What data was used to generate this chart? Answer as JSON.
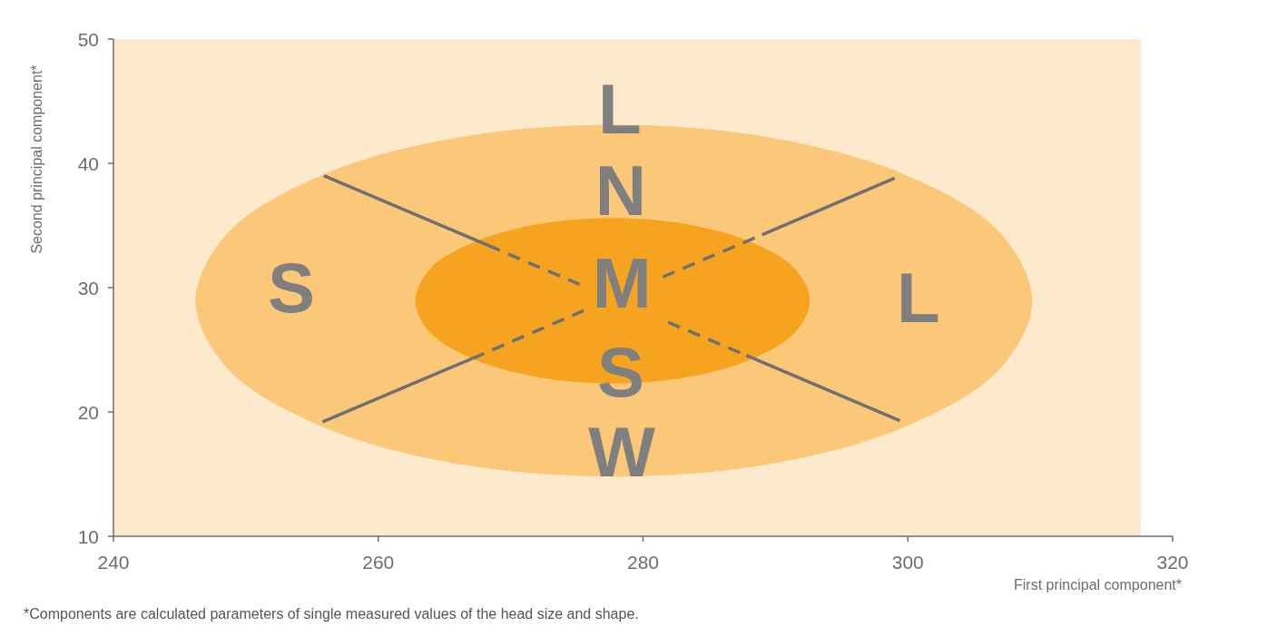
{
  "chart_data": {
    "type": "area",
    "xlabel": "First principal component*",
    "ylabel": "Second principal component*",
    "xlim": [
      240,
      320
    ],
    "ylim": [
      10,
      50
    ],
    "xticks": [
      240,
      260,
      280,
      300,
      320
    ],
    "yticks": [
      10,
      20,
      30,
      40,
      50
    ],
    "grid": false,
    "bands": [
      {
        "axis": "x",
        "from": 240,
        "to": 317.6,
        "color": "#fde9cb"
      }
    ],
    "series": [
      {
        "color": "#fbc87a",
        "x": [
          309.4,
          307.0,
          300.1,
          289.9,
          277.8,
          265.7,
          255.5,
          248.6,
          246.2,
          248.6,
          255.5,
          265.7,
          277.8,
          289.9,
          300.1,
          307.0
        ],
        "values": [
          28.95,
          34.37,
          38.95,
          42.02,
          43.1,
          42.02,
          38.95,
          34.37,
          28.95,
          23.53,
          18.95,
          15.88,
          14.8,
          15.88,
          18.95,
          23.53
        ]
      },
      {
        "color": "#f6a41f",
        "x": [
          292.6,
          291.5,
          288.2,
          283.4,
          277.7,
          272.0,
          267.2,
          263.9,
          262.8,
          263.9,
          267.2,
          272.0,
          277.7,
          283.4,
          288.2,
          291.5
        ],
        "values": [
          28.95,
          31.5,
          33.65,
          35.09,
          35.6,
          35.09,
          33.65,
          31.5,
          28.95,
          26.4,
          24.25,
          22.81,
          22.3,
          22.81,
          24.25,
          26.4
        ]
      },
      {
        "type": "line",
        "color": "#707070",
        "line_style": "solid",
        "x": [
          255.9,
          268.3
        ],
        "values": [
          39.0,
          33.4
        ]
      },
      {
        "type": "line",
        "color": "#707070",
        "line_style": "dashed",
        "x": [
          268.3,
          275.2
        ],
        "values": [
          33.4,
          30.26
        ]
      },
      {
        "type": "line",
        "color": "#707070",
        "line_style": "dashed",
        "x": [
          281.9,
          287.8
        ],
        "values": [
          27.22,
          24.55
        ]
      },
      {
        "type": "line",
        "color": "#707070",
        "line_style": "solid",
        "x": [
          287.8,
          299.4
        ],
        "values": [
          24.55,
          19.3
        ]
      },
      {
        "type": "line",
        "color": "#707070",
        "line_style": "solid",
        "x": [
          255.8,
          267.1
        ],
        "values": [
          19.2,
          24.3
        ]
      },
      {
        "type": "line",
        "color": "#707070",
        "line_style": "dashed",
        "x": [
          267.1,
          275.5
        ],
        "values": [
          24.3,
          28.14
        ]
      },
      {
        "type": "line",
        "color": "#707070",
        "line_style": "dashed",
        "x": [
          281.5,
          289.0
        ],
        "values": [
          30.86,
          34.26
        ]
      },
      {
        "type": "line",
        "color": "#707070",
        "line_style": "solid",
        "x": [
          289.0,
          299.0
        ],
        "values": [
          34.26,
          38.8
        ]
      }
    ],
    "annotations": [
      "L",
      "N",
      "M",
      "S",
      "W",
      "S",
      "L",
      "*Components are calculated parameters of single measured values  of the head size and shape."
    ]
  }
}
